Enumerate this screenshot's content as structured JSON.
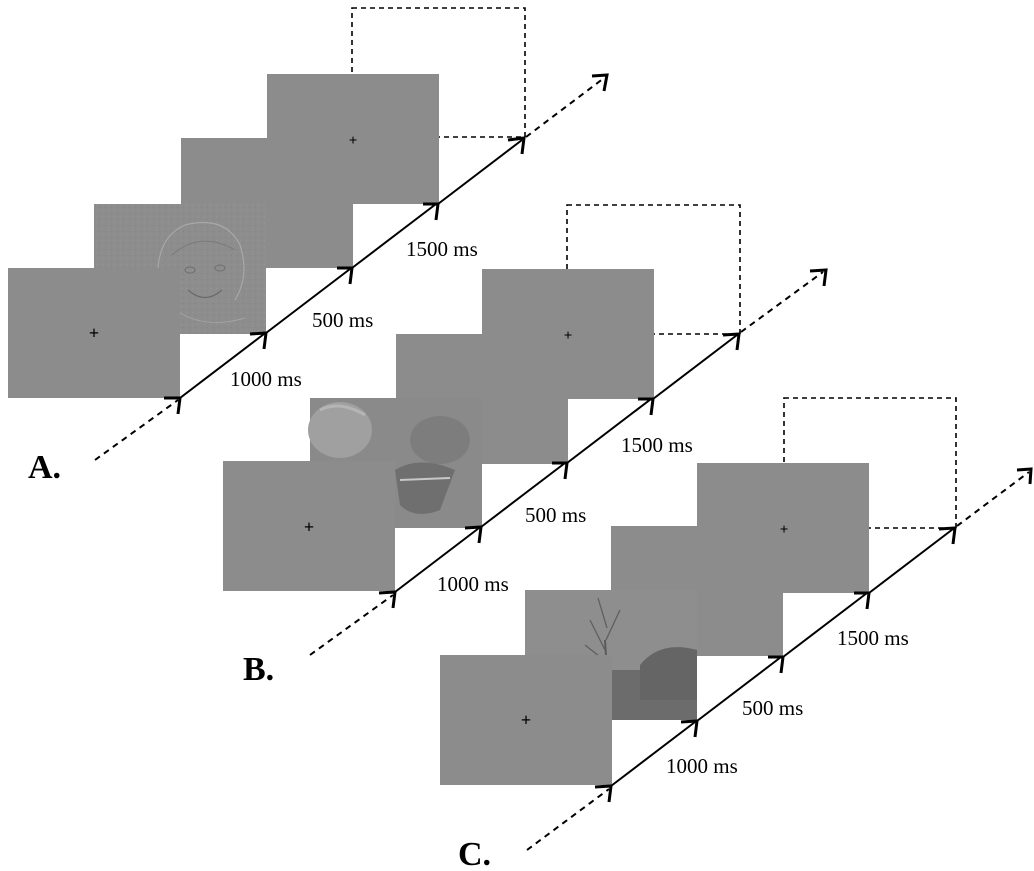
{
  "colors": {
    "screen_gray": "#8c8c8c",
    "stroke": "#000000",
    "background": "#ffffff"
  },
  "panels": [
    {
      "label": "A.",
      "stimulus": "face-photo-icon",
      "durations": [
        "1000 ms",
        "500 ms",
        "1500 ms"
      ]
    },
    {
      "label": "B.",
      "stimulus": "crocodile-photo-icon",
      "durations": [
        "1000 ms",
        "500 ms",
        "1500 ms"
      ]
    },
    {
      "label": "C.",
      "stimulus": "landscape-photo-icon",
      "durations": [
        "1000 ms",
        "500 ms",
        "1500 ms"
      ]
    }
  ]
}
